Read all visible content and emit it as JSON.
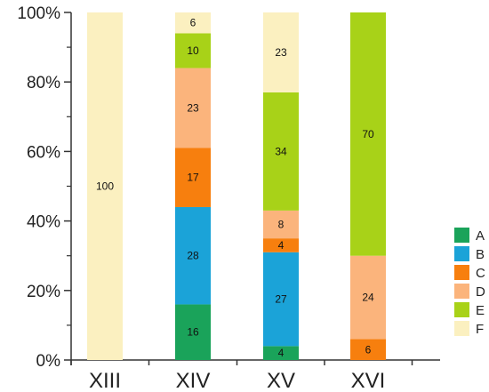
{
  "chart_data": {
    "type": "bar",
    "stacked": true,
    "percent": true,
    "categories": [
      "XIII",
      "XIV",
      "XV",
      "XVI"
    ],
    "series": [
      {
        "name": "A",
        "color": "#1aa35a",
        "values": [
          0,
          16,
          4,
          0
        ]
      },
      {
        "name": "B",
        "color": "#1ba3d8",
        "values": [
          0,
          28,
          27,
          0
        ]
      },
      {
        "name": "C",
        "color": "#f77f0e",
        "values": [
          0,
          17,
          4,
          6
        ]
      },
      {
        "name": "D",
        "color": "#fbb47c",
        "values": [
          0,
          23,
          8,
          24
        ]
      },
      {
        "name": "E",
        "color": "#a8d218",
        "values": [
          0,
          10,
          34,
          70
        ]
      },
      {
        "name": "F",
        "color": "#fbf0c0",
        "values": [
          100,
          6,
          23,
          0
        ]
      }
    ],
    "yticks": [
      "0%",
      "20%",
      "40%",
      "60%",
      "80%",
      "100%"
    ],
    "ylim": [
      0,
      100
    ],
    "grid": false,
    "legend_position": "right"
  }
}
